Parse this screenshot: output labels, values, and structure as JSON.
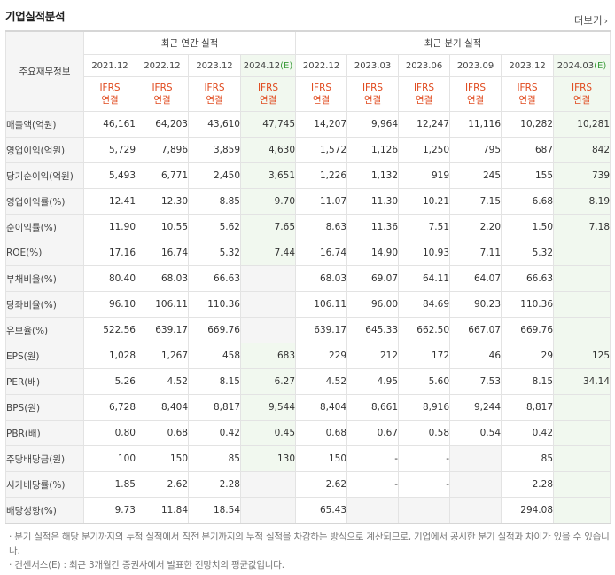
{
  "header": {
    "title": "기업실적분석",
    "more_label": "더보기",
    "more_icon": "chevron-right"
  },
  "table": {
    "metric_header": "주요재무정보",
    "annual_header": "최근 연간 실적",
    "quarter_header": "최근 분기 실적",
    "annual_periods": [
      {
        "label": "2021.12",
        "est": ""
      },
      {
        "label": "2022.12",
        "est": ""
      },
      {
        "label": "2023.12",
        "est": ""
      },
      {
        "label": "2024.12",
        "est": "(E)"
      }
    ],
    "quarter_periods": [
      {
        "label": "2022.12",
        "est": ""
      },
      {
        "label": "2023.03",
        "est": ""
      },
      {
        "label": "2023.06",
        "est": ""
      },
      {
        "label": "2023.09",
        "est": ""
      },
      {
        "label": "2023.12",
        "est": ""
      },
      {
        "label": "2024.03",
        "est": "(E)"
      }
    ],
    "ifrs_top": "IFRS",
    "ifrs_bottom": "연결",
    "rows": [
      {
        "label": "매출액(억원)",
        "values": [
          "46,161",
          "64,203",
          "43,610",
          "47,745",
          "14,207",
          "9,964",
          "12,247",
          "11,116",
          "10,282",
          "10,281"
        ]
      },
      {
        "label": "영업이익(억원)",
        "values": [
          "5,729",
          "7,896",
          "3,859",
          "4,630",
          "1,572",
          "1,126",
          "1,250",
          "795",
          "687",
          "842"
        ]
      },
      {
        "label": "당기순이익(억원)",
        "values": [
          "5,493",
          "6,771",
          "2,450",
          "3,651",
          "1,226",
          "1,132",
          "919",
          "245",
          "155",
          "739"
        ]
      },
      {
        "label": "영업이익률(%)",
        "values": [
          "12.41",
          "12.30",
          "8.85",
          "9.70",
          "11.07",
          "11.30",
          "10.21",
          "7.15",
          "6.68",
          "8.19"
        ]
      },
      {
        "label": "순이익률(%)",
        "values": [
          "11.90",
          "10.55",
          "5.62",
          "7.65",
          "8.63",
          "11.36",
          "7.51",
          "2.20",
          "1.50",
          "7.18"
        ]
      },
      {
        "label": "ROE(%)",
        "values": [
          "17.16",
          "16.74",
          "5.32",
          "7.44",
          "16.74",
          "14.90",
          "10.93",
          "7.11",
          "5.32",
          ""
        ]
      },
      {
        "label": "부채비율(%)",
        "values": [
          "80.40",
          "68.03",
          "66.63",
          "",
          "68.03",
          "69.07",
          "64.11",
          "64.07",
          "66.63",
          ""
        ]
      },
      {
        "label": "당좌비율(%)",
        "values": [
          "96.10",
          "106.11",
          "110.36",
          "",
          "106.11",
          "96.00",
          "84.69",
          "90.23",
          "110.36",
          ""
        ]
      },
      {
        "label": "유보율(%)",
        "values": [
          "522.56",
          "639.17",
          "669.76",
          "",
          "639.17",
          "645.33",
          "662.50",
          "667.07",
          "669.76",
          ""
        ]
      },
      {
        "label": "EPS(원)",
        "values": [
          "1,028",
          "1,267",
          "458",
          "683",
          "229",
          "212",
          "172",
          "46",
          "29",
          "125"
        ]
      },
      {
        "label": "PER(배)",
        "values": [
          "5.26",
          "4.52",
          "8.15",
          "6.27",
          "4.52",
          "4.95",
          "5.60",
          "7.53",
          "8.15",
          "34.14"
        ]
      },
      {
        "label": "BPS(원)",
        "values": [
          "6,728",
          "8,404",
          "8,817",
          "9,544",
          "8,404",
          "8,661",
          "8,916",
          "9,244",
          "8,817",
          ""
        ]
      },
      {
        "label": "PBR(배)",
        "values": [
          "0.80",
          "0.68",
          "0.42",
          "0.45",
          "0.68",
          "0.67",
          "0.58",
          "0.54",
          "0.42",
          ""
        ]
      },
      {
        "label": "주당배당금(원)",
        "values": [
          "100",
          "150",
          "85",
          "130",
          "150",
          "-",
          "-",
          "",
          "85",
          ""
        ]
      },
      {
        "label": "시가배당률(%)",
        "values": [
          "1.85",
          "2.62",
          "2.28",
          "",
          "2.62",
          "-",
          "-",
          "",
          "2.28",
          ""
        ]
      },
      {
        "label": "배당성향(%)",
        "values": [
          "9.73",
          "11.84",
          "18.54",
          "",
          "65.43",
          "",
          "",
          "",
          "294.08",
          ""
        ]
      }
    ]
  },
  "notes": [
    "분기 실적은 해당 분기까지의 누적 실적에서 직전 분기까지의 누적 실적을 차감하는 방식으로 계산되므로, 기업에서 공시한 분기 실적과 차이가 있을 수 있습니다.",
    "컨센서스(E) : 최근 3개월간 증권사에서 발표한 전망치의 평균값입니다."
  ]
}
